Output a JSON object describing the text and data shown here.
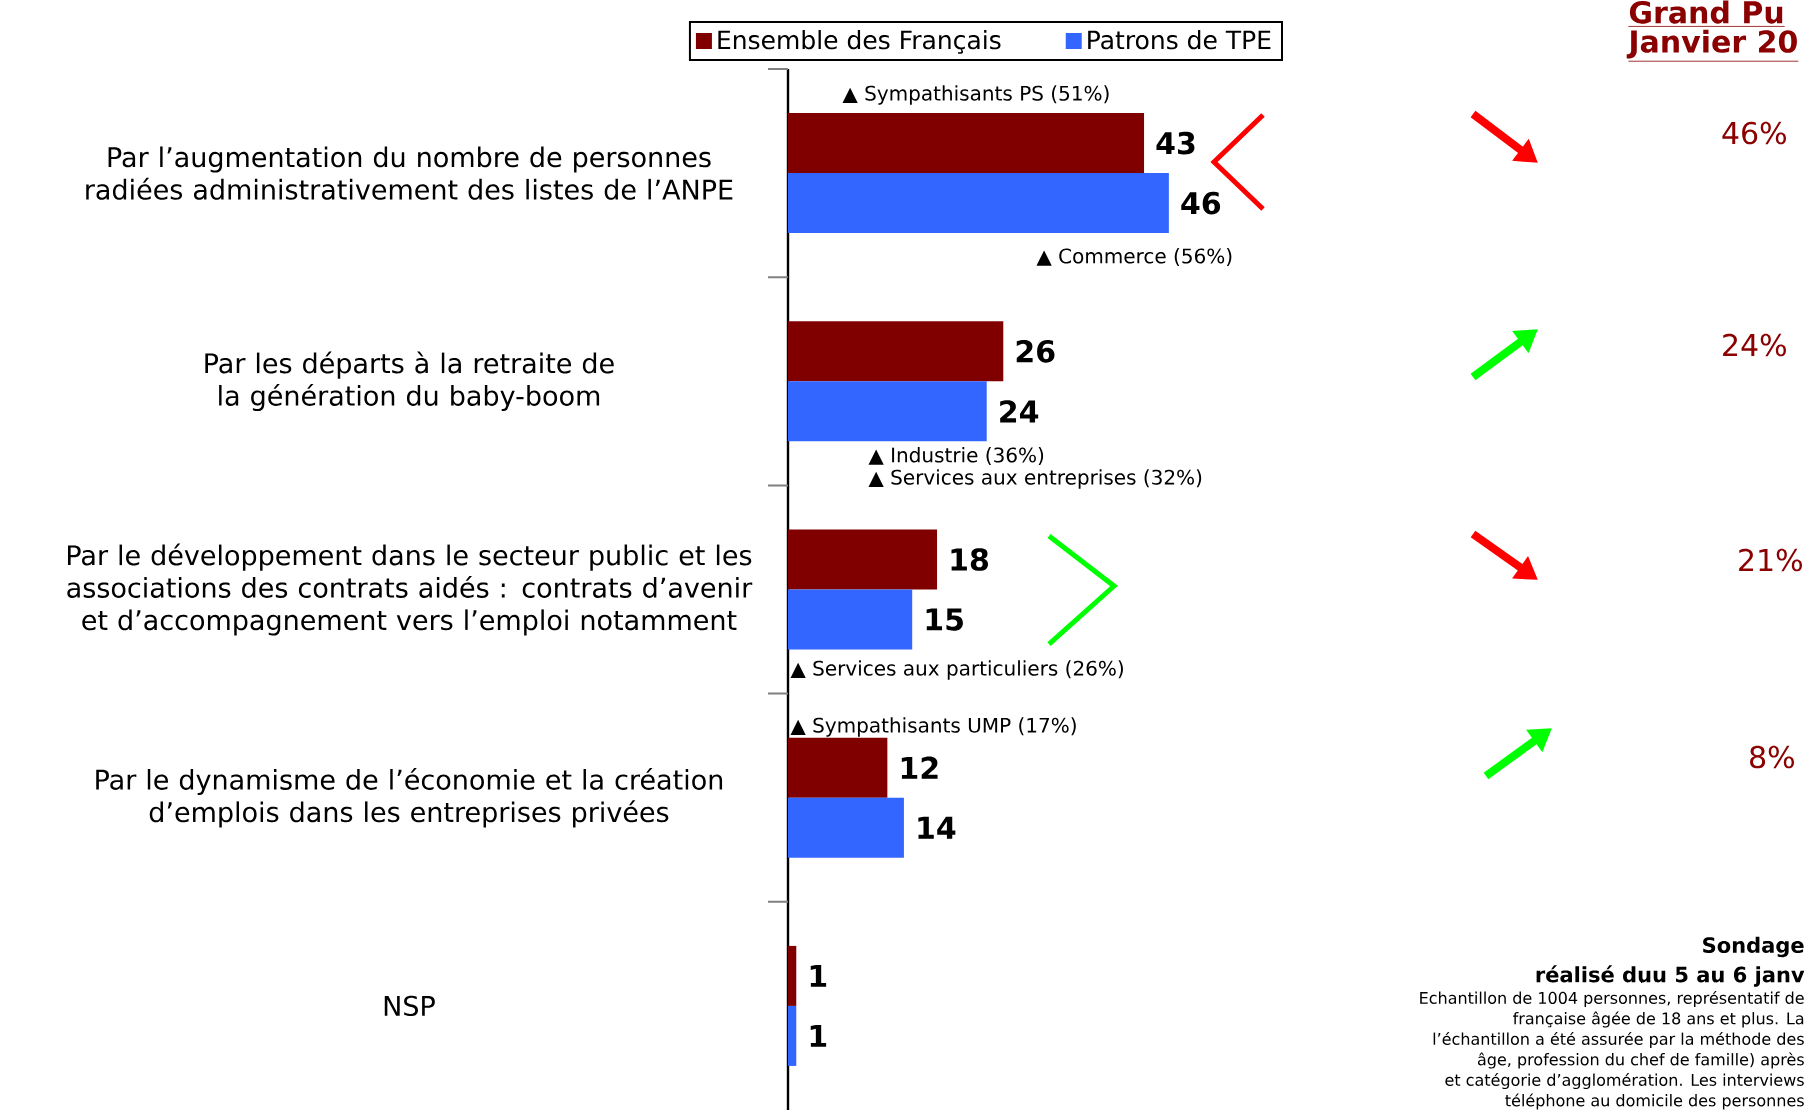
{
  "chart_data": {
    "type": "bar",
    "orientation": "horizontal",
    "categories": [
      "Par l’augmentation du nombre de personnes radiées administrativement des listes de l’ANPE",
      "Par les départs à la retraite de la génération du baby-boom",
      "Par le développement dans le secteur public et les associations des contrats aidés : contrats d’avenir et d’accompagnement vers l’emploi notamment",
      "Par le dynamisme de l’économie et la création d’emplois dans les entreprises privées",
      "NSP"
    ],
    "series": [
      {
        "name": "Ensemble des Français",
        "color": "#800000",
        "values": [
          43,
          26,
          18,
          12,
          1
        ]
      },
      {
        "name": "Patrons de TPE",
        "color": "#3366ff",
        "values": [
          46,
          24,
          15,
          14,
          1
        ]
      }
    ],
    "data_labels": true,
    "legend": "top",
    "annotations": [
      "Grand Pu",
      "Janvier 20",
      "46%",
      "24%",
      "21%",
      "8%",
      "▲ Sympathisants PS (51%)",
      "▲ Commerce (56%)",
      "▲ Industrie (36%)",
      "▲ Services aux entreprises (32%)",
      "▲ Services aux particuliers (26%)",
      "▲ Sympathisants UMP (17%)",
      "Sondage",
      "réalisé duu 5 au 6 janv",
      "Echantillon de 1004 personnes, représentatif de",
      "française âgée de 18 ans et plus. La",
      "l’échantillon a été assurée par la méthode des",
      "âge, profession du chef de famille) après",
      "et catégorie d’agglomération. Les interviews",
      "téléphone au domicile des personnes"
    ]
  }
}
